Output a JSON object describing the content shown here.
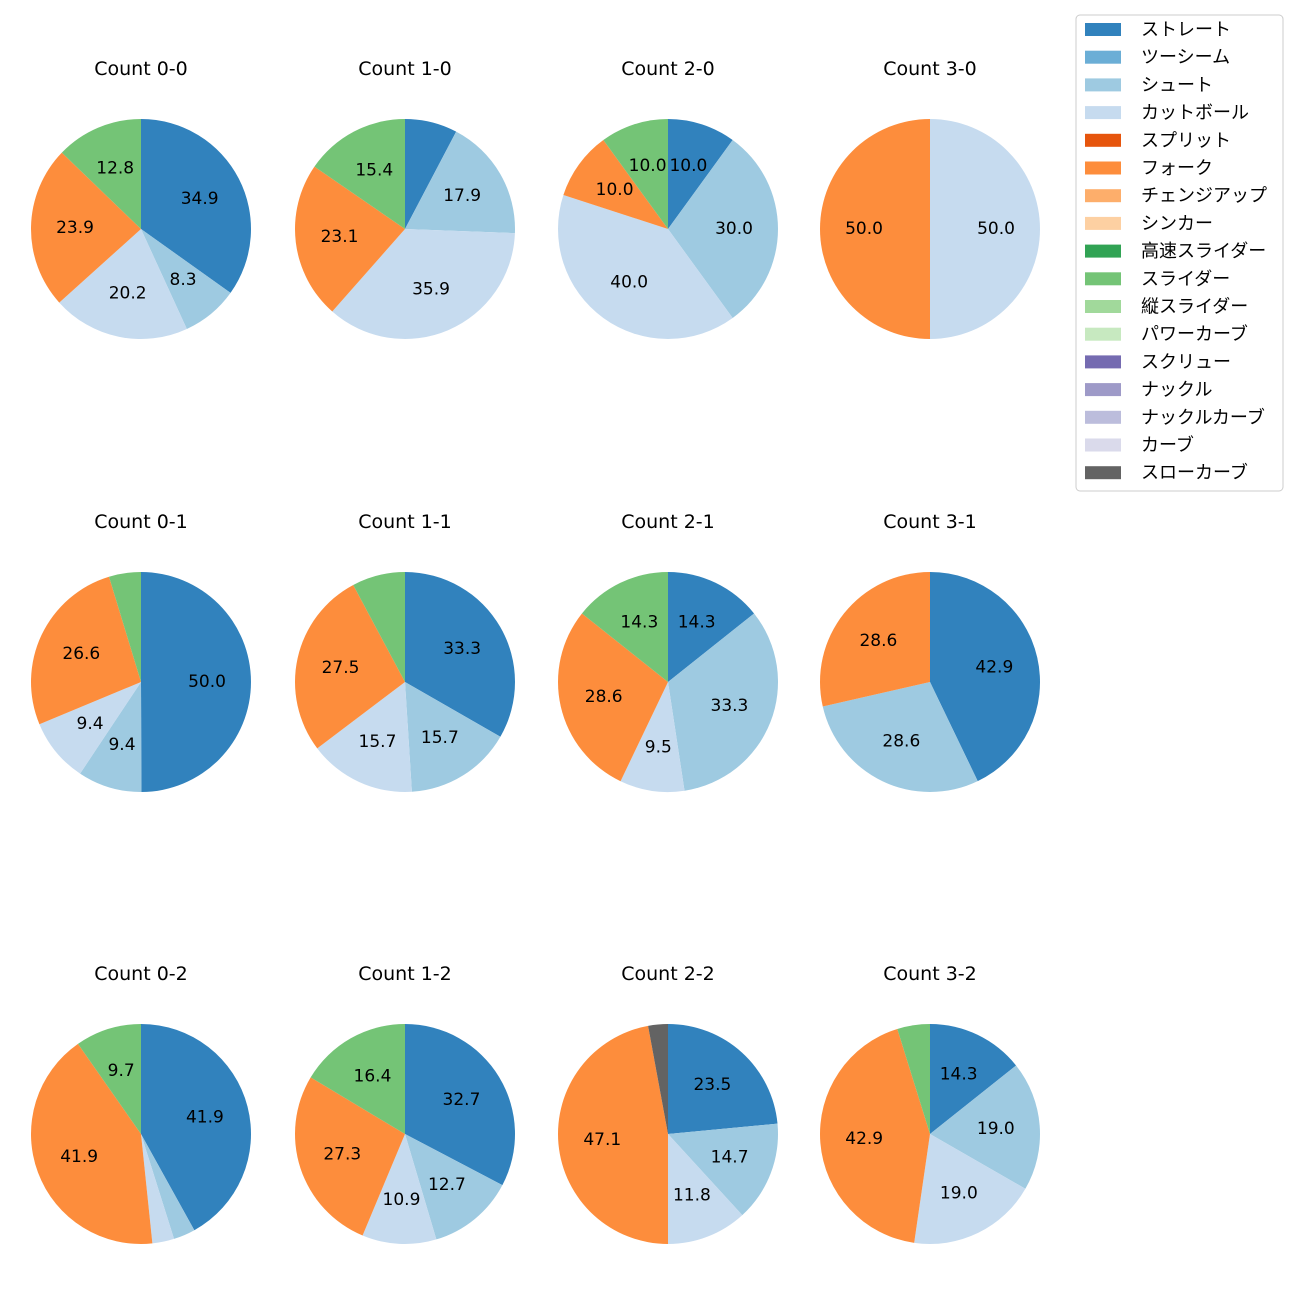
{
  "colors": {
    "ストレート": "#3182bd",
    "ツーシーム": "#6baed6",
    "シュート": "#9ecae1",
    "カットボール": "#c6dbef",
    "スプリット": "#e6550d",
    "フォーク": "#fd8d3c",
    "チェンジアップ": "#fdae6b",
    "シンカー": "#fdd0a2",
    "高速スライダー": "#31a354",
    "スライダー": "#74c476",
    "縦スライダー": "#a1d99b",
    "パワーカーブ": "#c7e9c0",
    "スクリュー": "#756bb1",
    "ナックル": "#9e9ac8",
    "ナックルカーブ": "#bcbddc",
    "カーブ": "#dadaeb",
    "スローカーブ": "#636363"
  },
  "chart_data": {
    "type": "pie",
    "legend_position": "top-right",
    "legend": [
      "ストレート",
      "ツーシーム",
      "シュート",
      "カットボール",
      "スプリット",
      "フォーク",
      "チェンジアップ",
      "シンカー",
      "高速スライダー",
      "スライダー",
      "縦スライダー",
      "パワーカーブ",
      "スクリュー",
      "ナックル",
      "ナックルカーブ",
      "カーブ",
      "スローカーブ"
    ],
    "panels": [
      {
        "title": "Count 0-0",
        "slices": [
          {
            "category": "ストレート",
            "value": 34.9,
            "label": "34.9"
          },
          {
            "category": "シュート",
            "value": 8.3,
            "label": "8.3"
          },
          {
            "category": "カットボール",
            "value": 20.2,
            "label": "20.2"
          },
          {
            "category": "フォーク",
            "value": 23.9,
            "label": "23.9"
          },
          {
            "category": "スライダー",
            "value": 12.8,
            "label": "12.8"
          }
        ]
      },
      {
        "title": "Count 1-0",
        "slices": [
          {
            "category": "ストレート",
            "value": 7.7,
            "label": ""
          },
          {
            "category": "シュート",
            "value": 17.9,
            "label": "17.9"
          },
          {
            "category": "カットボール",
            "value": 35.9,
            "label": "35.9"
          },
          {
            "category": "フォーク",
            "value": 23.1,
            "label": "23.1"
          },
          {
            "category": "スライダー",
            "value": 15.4,
            "label": "15.4"
          }
        ]
      },
      {
        "title": "Count 2-0",
        "slices": [
          {
            "category": "ストレート",
            "value": 10.0,
            "label": "10.0"
          },
          {
            "category": "シュート",
            "value": 30.0,
            "label": "30.0"
          },
          {
            "category": "カットボール",
            "value": 40.0,
            "label": "40.0"
          },
          {
            "category": "フォーク",
            "value": 10.0,
            "label": "10.0"
          },
          {
            "category": "スライダー",
            "value": 10.0,
            "label": "10.0"
          }
        ]
      },
      {
        "title": "Count 3-0",
        "slices": [
          {
            "category": "カットボール",
            "value": 50.0,
            "label": "50.0"
          },
          {
            "category": "フォーク",
            "value": 50.0,
            "label": "50.0"
          }
        ]
      },
      {
        "title": "Count 0-1",
        "slices": [
          {
            "category": "ストレート",
            "value": 50.0,
            "label": "50.0"
          },
          {
            "category": "シュート",
            "value": 9.4,
            "label": "9.4"
          },
          {
            "category": "カットボール",
            "value": 9.4,
            "label": "9.4"
          },
          {
            "category": "フォーク",
            "value": 26.6,
            "label": "26.6"
          },
          {
            "category": "スライダー",
            "value": 4.7,
            "label": ""
          }
        ]
      },
      {
        "title": "Count 1-1",
        "slices": [
          {
            "category": "ストレート",
            "value": 33.3,
            "label": "33.3"
          },
          {
            "category": "シュート",
            "value": 15.7,
            "label": "15.7"
          },
          {
            "category": "カットボール",
            "value": 15.7,
            "label": "15.7"
          },
          {
            "category": "フォーク",
            "value": 27.5,
            "label": "27.5"
          },
          {
            "category": "スライダー",
            "value": 7.8,
            "label": ""
          }
        ]
      },
      {
        "title": "Count 2-1",
        "slices": [
          {
            "category": "ストレート",
            "value": 14.3,
            "label": "14.3"
          },
          {
            "category": "シュート",
            "value": 33.3,
            "label": "33.3"
          },
          {
            "category": "カットボール",
            "value": 9.5,
            "label": "9.5"
          },
          {
            "category": "フォーク",
            "value": 28.6,
            "label": "28.6"
          },
          {
            "category": "スライダー",
            "value": 14.3,
            "label": "14.3"
          }
        ]
      },
      {
        "title": "Count 3-1",
        "slices": [
          {
            "category": "ストレート",
            "value": 42.9,
            "label": "42.9"
          },
          {
            "category": "シュート",
            "value": 28.6,
            "label": "28.6"
          },
          {
            "category": "フォーク",
            "value": 28.6,
            "label": "28.6"
          }
        ]
      },
      {
        "title": "Count 0-2",
        "slices": [
          {
            "category": "ストレート",
            "value": 41.9,
            "label": "41.9"
          },
          {
            "category": "シュート",
            "value": 3.2,
            "label": ""
          },
          {
            "category": "カットボール",
            "value": 3.2,
            "label": ""
          },
          {
            "category": "フォーク",
            "value": 41.9,
            "label": "41.9"
          },
          {
            "category": "スライダー",
            "value": 9.7,
            "label": "9.7"
          }
        ]
      },
      {
        "title": "Count 1-2",
        "slices": [
          {
            "category": "ストレート",
            "value": 32.7,
            "label": "32.7"
          },
          {
            "category": "シュート",
            "value": 12.7,
            "label": "12.7"
          },
          {
            "category": "カットボール",
            "value": 10.9,
            "label": "10.9"
          },
          {
            "category": "フォーク",
            "value": 27.3,
            "label": "27.3"
          },
          {
            "category": "スライダー",
            "value": 16.4,
            "label": "16.4"
          }
        ]
      },
      {
        "title": "Count 2-2",
        "slices": [
          {
            "category": "ストレート",
            "value": 23.5,
            "label": "23.5"
          },
          {
            "category": "シュート",
            "value": 14.7,
            "label": "14.7"
          },
          {
            "category": "カットボール",
            "value": 11.8,
            "label": "11.8"
          },
          {
            "category": "フォーク",
            "value": 47.1,
            "label": "47.1"
          },
          {
            "category": "スローカーブ",
            "value": 2.9,
            "label": ""
          }
        ]
      },
      {
        "title": "Count 3-2",
        "slices": [
          {
            "category": "ストレート",
            "value": 14.3,
            "label": "14.3"
          },
          {
            "category": "シュート",
            "value": 19.0,
            "label": "19.0"
          },
          {
            "category": "カットボール",
            "value": 19.0,
            "label": "19.0"
          },
          {
            "category": "フォーク",
            "value": 42.9,
            "label": "42.9"
          },
          {
            "category": "スライダー",
            "value": 4.8,
            "label": ""
          }
        ]
      }
    ]
  }
}
